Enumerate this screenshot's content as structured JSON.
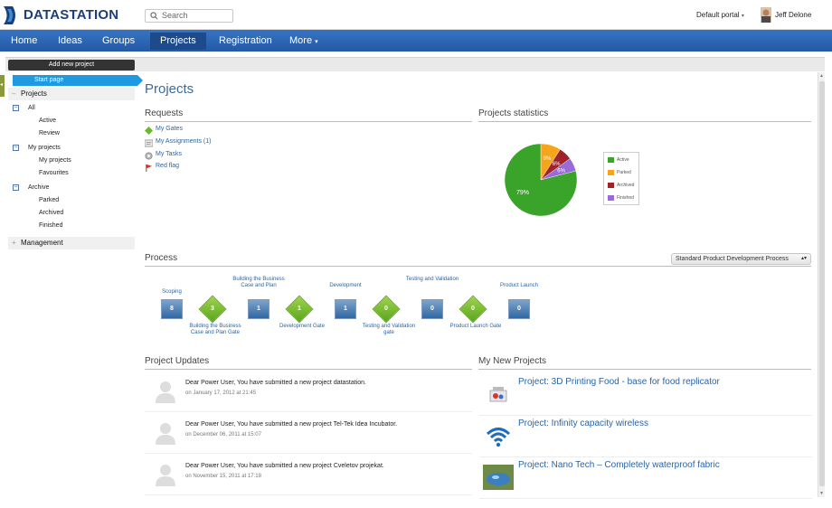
{
  "brand": {
    "name": "DATASTATION",
    "accent": "#2a65b3",
    "logo_blue": "#1c3f7a"
  },
  "header": {
    "search_placeholder": "Search",
    "portal": "Default portal",
    "user": "Jeff Delone"
  },
  "nav": {
    "items": [
      {
        "label": "Home"
      },
      {
        "label": "Ideas"
      },
      {
        "label": "Groups"
      },
      {
        "label": "Projects",
        "active": true
      },
      {
        "label": "Registration"
      },
      {
        "label": "More"
      }
    ]
  },
  "sidebar": {
    "add_button": "Add new project",
    "start_page": "Start page",
    "projects_label": "Projects",
    "all": "All",
    "active": "Active",
    "review": "Review",
    "my_projects_group": "My projects",
    "my_projects_item": "My projects",
    "favourites": "Favourites",
    "archive": "Archive",
    "parked": "Parked",
    "archived": "Archived",
    "finished": "Finished",
    "management": "Management"
  },
  "main": {
    "title": "Projects",
    "requests": {
      "title": "Requests",
      "items": [
        {
          "label": "My Gates",
          "icon": "diamond-icon"
        },
        {
          "label": "My Assignments (1)",
          "icon": "assignment-icon"
        },
        {
          "label": "My Tasks",
          "icon": "gear-icon"
        },
        {
          "label": "Red flag",
          "icon": "flag-icon"
        }
      ]
    },
    "stats": {
      "title": "Projects statistics",
      "slices": [
        {
          "label": "Active",
          "pct": 79,
          "text": "79%",
          "color": "#3aa32a"
        },
        {
          "label": "Parked",
          "pct": 9,
          "text": "9%",
          "color": "#f5a51a"
        },
        {
          "label": "Archived",
          "pct": 6,
          "text": "6%",
          "color": "#a0222a"
        },
        {
          "label": "Finished",
          "pct": 6,
          "text": "6%",
          "color": "#9a6ad8"
        }
      ]
    },
    "process": {
      "title": "Process",
      "select": "Standard Product Development Process",
      "steps": [
        {
          "kind": "box",
          "count": "8",
          "label": "Scoping"
        },
        {
          "kind": "gate",
          "count": "3",
          "label": "Building the Business Case and Plan Gate"
        },
        {
          "kind": "box",
          "count": "1",
          "label": "Building the Business Case and Plan"
        },
        {
          "kind": "gate",
          "count": "1",
          "label": "Development Gate"
        },
        {
          "kind": "box",
          "count": "1",
          "label": "Development"
        },
        {
          "kind": "gate",
          "count": "0",
          "label": "Testing and Validation gate"
        },
        {
          "kind": "box",
          "count": "0",
          "label": "Testing and Validation"
        },
        {
          "kind": "gate",
          "count": "0",
          "label": "Product Launch Gate"
        },
        {
          "kind": "box",
          "count": "0",
          "label": "Product Launch"
        }
      ]
    },
    "updates": {
      "title": "Project Updates",
      "items": [
        {
          "msg": "Dear Power User, You have submitted a new project datastation.",
          "date": "on January 17, 2012 at 21:45"
        },
        {
          "msg": "Dear Power User, You have submitted a new project Tel-Tek Idea Incubator.",
          "date": "on December 06, 2011 at 15:07"
        },
        {
          "msg": "Dear Power User, You have submitted a new project Cveletov projekat.",
          "date": "on November 15, 2011 at 17:18"
        }
      ]
    },
    "new_projects": {
      "title": "My New Projects",
      "items": [
        {
          "label": "Project: 3D Printing Food - base for food replicator"
        },
        {
          "label": "Project: Infinity capacity wireless"
        },
        {
          "label": "Project: Nano Tech – Completely waterproof fabric"
        }
      ]
    }
  }
}
